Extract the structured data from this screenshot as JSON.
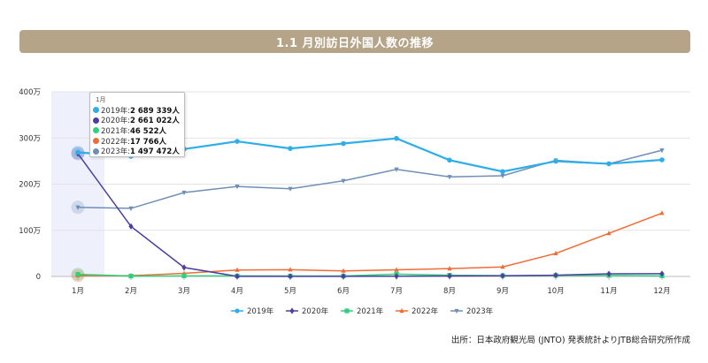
{
  "header": {
    "title": "1.1 月別訪日外国人数の推移"
  },
  "source_note": "出所：日本政府観光局 (JNTO) 発表統計よりJTB総合研究所作成",
  "chart_data": {
    "type": "line",
    "categories": [
      "1月",
      "2月",
      "3月",
      "4月",
      "5月",
      "6月",
      "7月",
      "8月",
      "9月",
      "10月",
      "11月",
      "12月"
    ],
    "y_ticks": [
      "0",
      "100万",
      "200万",
      "300万",
      "400万"
    ],
    "ylim": [
      0,
      4000000
    ],
    "grid": "horizontal",
    "legend_position": "bottom",
    "series": [
      {
        "name": "2019年",
        "color": "#2eaee8",
        "marker": "circle",
        "values": [
          2689339,
          2604322,
          2760136,
          2926685,
          2773091,
          2880041,
          2991189,
          2520134,
          2272883,
          2496568,
          2441274,
          2526387
        ]
      },
      {
        "name": "2020年",
        "color": "#4b3fa1",
        "marker": "diamond",
        "values": [
          2661022,
          1085147,
          193658,
          2917,
          1663,
          2565,
          3782,
          8658,
          13684,
          27386,
          56673,
          58673
        ]
      },
      {
        "name": "2021年",
        "color": "#2fd07b",
        "marker": "square",
        "values": [
          46522,
          7355,
          12276,
          10935,
          10035,
          9250,
          51055,
          25916,
          17720,
          22113,
          20658,
          12084
        ]
      },
      {
        "name": "2022年",
        "color": "#ef6c35",
        "marker": "triangle",
        "values": [
          17766,
          16719,
          66121,
          139548,
          147046,
          120430,
          144578,
          169902,
          206641,
          498646,
          934599,
          1372100
        ]
      },
      {
        "name": "2023年",
        "color": "#6f8fb8",
        "marker": "triangle-down",
        "values": [
          1497472,
          1475455,
          1817946,
          1949236,
          1899176,
          2072300,
          2320600,
          2157600,
          2182300,
          2516500,
          2441300,
          2734000
        ]
      }
    ],
    "tooltip": {
      "category": "1月",
      "rows": [
        {
          "label": "2019年:",
          "value": "2 689 339人",
          "color": "#2eaee8"
        },
        {
          "label": "2020年:",
          "value": "2 661 022人",
          "color": "#4b3fa1"
        },
        {
          "label": "2021年:",
          "value": "46 522人",
          "color": "#2fd07b"
        },
        {
          "label": "2022年:",
          "value": "17 766人",
          "color": "#ef6c35"
        },
        {
          "label": "2023年:",
          "value": "1 497 472人",
          "color": "#6f8fb8"
        }
      ]
    }
  }
}
